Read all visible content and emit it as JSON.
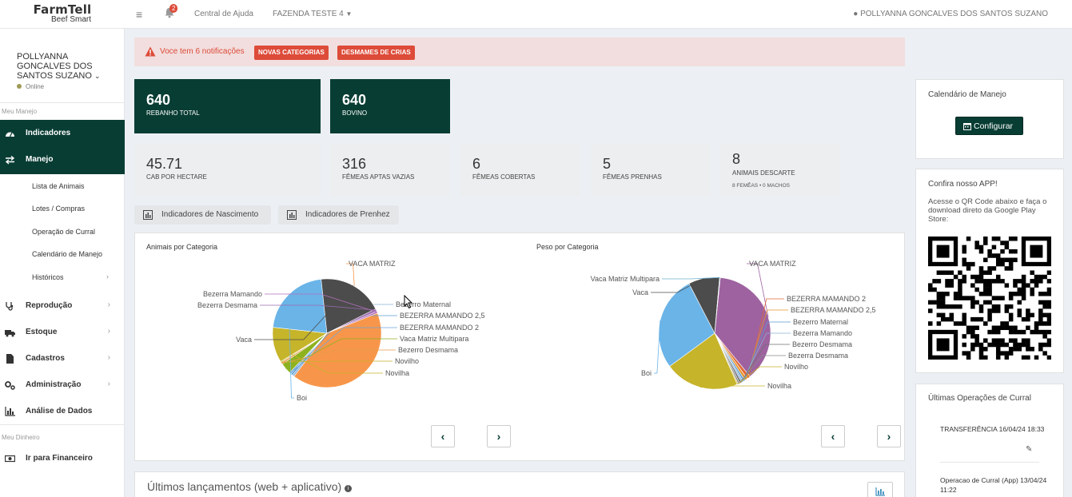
{
  "header": {
    "logo_line1": "FarmTell",
    "logo_line2": "Beef Smart",
    "notif_count": "2",
    "help_link": "Central de Ajuda",
    "farm": "FAZENDA TESTE 4",
    "user": "POLLYANNA GONCALVES DOS SANTOS SUZANO"
  },
  "sidebar": {
    "user_name": "POLLYANNA GONCALVES DOS SANTOS SUZANO",
    "status": "Online",
    "section1": "Meu Manejo",
    "section2": "Meu Dinheiro",
    "items": [
      {
        "label": "Indicadores"
      },
      {
        "label": "Manejo"
      },
      {
        "label": "Reprodução"
      },
      {
        "label": "Estoque"
      },
      {
        "label": "Cadastros"
      },
      {
        "label": "Administração"
      },
      {
        "label": "Análise de Dados"
      },
      {
        "label": "Ir para Financeiro"
      }
    ],
    "subitems": [
      {
        "label": "Lista de Animais"
      },
      {
        "label": "Lotes / Compras"
      },
      {
        "label": "Operação de Curral"
      },
      {
        "label": "Calendário de Manejo"
      },
      {
        "label": "Históricos"
      }
    ]
  },
  "alert": {
    "text": "Voce tem 6 notificações",
    "tag1": "NOVAS CATEGORIAS",
    "tag2": "DESMAMES DE CRIAS"
  },
  "kpis_dark": [
    {
      "value": "640",
      "label": "REBANHO TOTAL"
    },
    {
      "value": "640",
      "label": "BOVINO"
    }
  ],
  "kpis": [
    {
      "value": "45.71",
      "label": "CAB POR HECTARE"
    },
    {
      "value": "316",
      "label": "FÊMEAS APTAS VAZIAS"
    },
    {
      "value": "6",
      "label": "FÊMEAS COBERTAS"
    },
    {
      "value": "5",
      "label": "FÊMEAS PRENHAS"
    },
    {
      "value": "8",
      "label": "ANIMAIS DESCARTE",
      "sub": "8 FEMÊAS • 0 MACHOS"
    }
  ],
  "buttons": {
    "nascimento": "Indicadores de Nascimento",
    "prenhez": "Indicadores de Prenhez"
  },
  "charts": {
    "left_title": "Animais por Categoria",
    "right_title": "Peso por Categoria"
  },
  "chart_data": [
    {
      "type": "pie",
      "title": "Animais por Categoria",
      "categories": [
        "VACA MATRIZ",
        "Bezerro Maternal",
        "BEZERRA MAMANDO 2,5",
        "BEZERRA MAMANDO 2",
        "Vaca Matriz Multipara",
        "Bezerro Desmama",
        "Novilho",
        "Novilha",
        "Boi",
        "Vaca",
        "Bezerra Desmama",
        "Bezerra Mamando"
      ],
      "values": [
        37.5,
        0.5,
        0.5,
        0.5,
        3.0,
        0.5,
        0.3,
        9.5,
        19.5,
        17.5,
        0.7,
        0.5
      ],
      "colors": [
        "#f7964a",
        "#8ab4d8",
        "#5e9bd1",
        "#6fa8dc",
        "#8db21f",
        "#e89a4c",
        "#c9b02d",
        "#c6b42a",
        "#6ab4e8",
        "#4c4c4c",
        "#9b6bb0",
        "#b36fbd"
      ]
    },
    {
      "type": "pie",
      "title": "Peso por Categoria",
      "categories": [
        "VACA MATRIZ",
        "BEZERRA MAMANDO 2",
        "BEZERRA MAMANDO 2,5",
        "Bezerro Maternal",
        "Bezerra Mamando",
        "Bezerro Desmama",
        "Bezerra Desmama",
        "Novilho",
        "Novilha",
        "Boi",
        "Vaca",
        "Vaca Matriz Multipara"
      ],
      "values": [
        37.5,
        1.0,
        0.8,
        0.6,
        0.5,
        0.6,
        0.5,
        0.3,
        21.5,
        27.5,
        9.0,
        0.2
      ],
      "colors": [
        "#9e62a0",
        "#e06a3a",
        "#e8952f",
        "#5e9bd1",
        "#8ab4d8",
        "#707070",
        "#888888",
        "#c9b02d",
        "#c6b42a",
        "#6ab4e8",
        "#4c4c4c",
        "#6fb3d2"
      ]
    }
  ],
  "lancamentos": {
    "title": "Últimos lançamentos (web + aplicativo)"
  },
  "right": {
    "calendar_title": "Calendário de Manejo",
    "configure": "Configurar",
    "app_title": "Confira nosso APP!",
    "app_desc": "Acesse o QR Code abaixo e faça o download direto da Google Play Store:",
    "ops_title": "Últimas Operações de Curral",
    "op1": "TRANSFERÊNCIA 16/04/24 18:33",
    "op2": "Operacao de Curral (App) 13/04/24 11:22"
  }
}
